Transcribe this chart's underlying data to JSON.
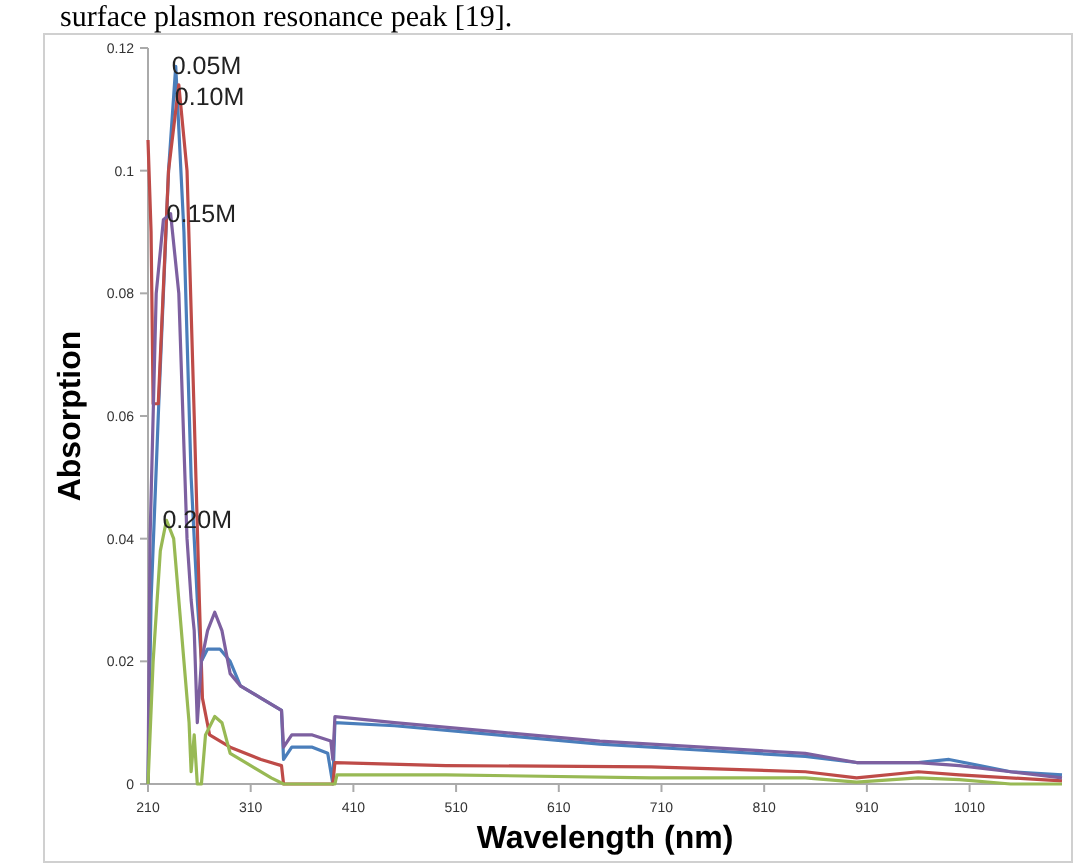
{
  "chart_data": {
    "type": "line",
    "xlabel": "Wavelength (nm)",
    "ylabel": "Absorption",
    "annotations": [
      "surface plasmon resonance peak [19]."
    ],
    "xlim": [
      210,
      1100
    ],
    "xticks": [
      210,
      310,
      410,
      510,
      610,
      710,
      810,
      910,
      1010
    ],
    "ylim": [
      0,
      0.12
    ],
    "yticks": [
      0,
      0.02,
      0.04,
      0.06,
      0.08,
      0.1,
      0.12
    ],
    "grid": false,
    "legend": false,
    "marker": "none",
    "line_style": "solid",
    "series": [
      {
        "name": "0.05M",
        "color": "#4a7ebb",
        "x": [
          210,
          213,
          220,
          230,
          237,
          245,
          252,
          258,
          262,
          268,
          280,
          290,
          300,
          320,
          340,
          342,
          350,
          370,
          385,
          390,
          392,
          450,
          550,
          650,
          750,
          850,
          900,
          960,
          990,
          1050,
          1100
        ],
        "values": [
          0,
          0.03,
          0.06,
          0.1,
          0.117,
          0.09,
          0.05,
          0.03,
          0.02,
          0.022,
          0.022,
          0.02,
          0.016,
          0.014,
          0.012,
          0.004,
          0.006,
          0.006,
          0.005,
          0,
          0.01,
          0.0095,
          0.008,
          0.0065,
          0.0055,
          0.0045,
          0.0035,
          0.0035,
          0.004,
          0.002,
          0.0015
        ]
      },
      {
        "name": "0.10M",
        "color": "#be4b48",
        "x": [
          210,
          213,
          215,
          220,
          230,
          240,
          248,
          255,
          260,
          263,
          270,
          290,
          320,
          340,
          342,
          390,
          392,
          500,
          700,
          850,
          900,
          960,
          1000,
          1100
        ],
        "values": [
          0.105,
          0.09,
          0.062,
          0.062,
          0.1,
          0.114,
          0.1,
          0.06,
          0.03,
          0.014,
          0.008,
          0.006,
          0.004,
          0.003,
          0,
          0,
          0.0035,
          0.003,
          0.0028,
          0.002,
          0.001,
          0.002,
          0.0015,
          0.0005
        ]
      },
      {
        "name": "0.15M",
        "color": "#7d60a0",
        "x": [
          210,
          212,
          218,
          225,
          232,
          240,
          248,
          252,
          255,
          258,
          262,
          268,
          275,
          282,
          290,
          300,
          320,
          340,
          342,
          350,
          370,
          388,
          390,
          392,
          450,
          550,
          650,
          750,
          850,
          900,
          960,
          1000,
          1050,
          1100
        ],
        "values": [
          0,
          0.04,
          0.08,
          0.092,
          0.093,
          0.08,
          0.04,
          0.03,
          0.025,
          0.01,
          0.02,
          0.025,
          0.028,
          0.025,
          0.018,
          0.016,
          0.014,
          0.012,
          0.006,
          0.008,
          0.008,
          0.007,
          0.004,
          0.011,
          0.01,
          0.0085,
          0.007,
          0.006,
          0.005,
          0.0035,
          0.0035,
          0.003,
          0.002,
          0.001
        ]
      },
      {
        "name": "0.20M",
        "color": "#98b954",
        "x": [
          210,
          215,
          222,
          228,
          235,
          245,
          250,
          252,
          255,
          258,
          262,
          266,
          275,
          282,
          290,
          310,
          330,
          342,
          392,
          394,
          500,
          700,
          850,
          900,
          960,
          1000,
          1050,
          1100
        ],
        "values": [
          0,
          0.02,
          0.038,
          0.043,
          0.04,
          0.02,
          0.01,
          0.002,
          0.008,
          0,
          0,
          0.008,
          0.011,
          0.01,
          0.005,
          0.003,
          0.001,
          0,
          0,
          0.0015,
          0.0015,
          0.001,
          0.001,
          0.0003,
          0.001,
          0.0007,
          0,
          0
        ]
      }
    ]
  }
}
